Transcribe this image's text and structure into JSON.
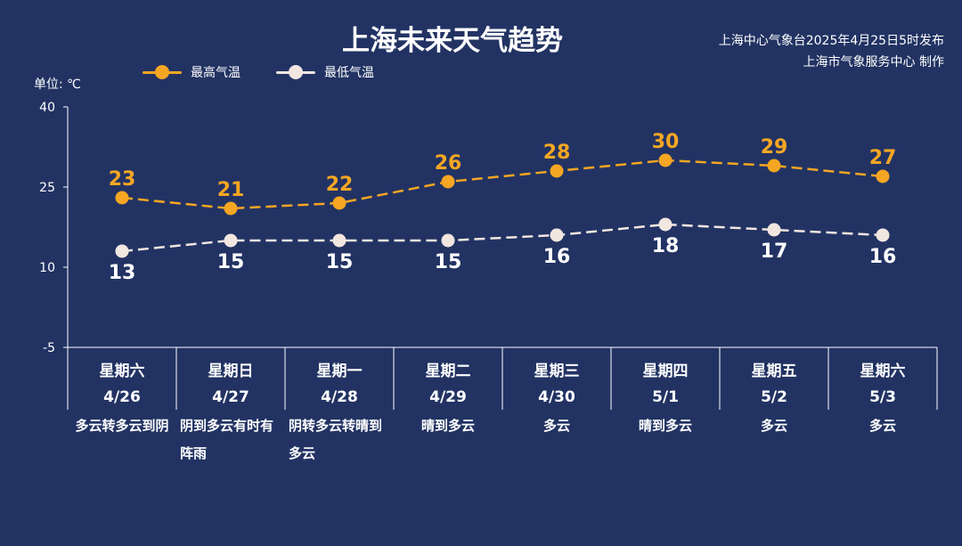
{
  "title": "上海未来天气趋势",
  "issuer_line1": "上海中心气象台2025年4月25日5时发布",
  "issuer_line2": "上海市气象服务中心 制作",
  "unit_label": "单位: ℃",
  "colors": {
    "background": "#223363",
    "high": "#F5A623",
    "low": "#F2E6E0"
  },
  "chart_data": {
    "type": "line",
    "categories": [
      "星期六 4/26",
      "星期日 4/27",
      "星期一 4/28",
      "星期二 4/29",
      "星期三 4/30",
      "星期四 5/1",
      "星期五 5/2",
      "星期六 5/3"
    ],
    "weekdays": [
      "星期六",
      "星期日",
      "星期一",
      "星期二",
      "星期三",
      "星期四",
      "星期五",
      "星期六"
    ],
    "dates": [
      "4/26",
      "4/27",
      "4/28",
      "4/29",
      "4/30",
      "5/1",
      "5/2",
      "5/3"
    ],
    "series": [
      {
        "name": "最高气温",
        "values": [
          23,
          21,
          22,
          26,
          28,
          30,
          29,
          27
        ]
      },
      {
        "name": "最低气温",
        "values": [
          13,
          15,
          15,
          15,
          16,
          18,
          17,
          16
        ]
      }
    ],
    "yticks": [
      40,
      25,
      10,
      -5
    ],
    "ylim": [
      -5,
      40
    ],
    "legend_position": "top-left",
    "line_style": "dashed"
  },
  "weather": [
    "多云转多云到阴",
    "阴到多云有时有阵雨",
    "阴转多云转晴到多云",
    "晴到多云",
    "多云",
    "晴到多云",
    "多云",
    "多云"
  ]
}
